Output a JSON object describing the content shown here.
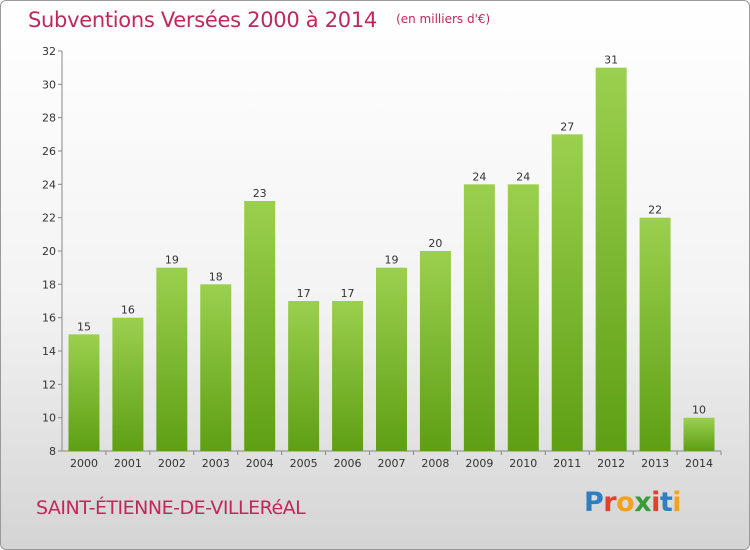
{
  "header": {
    "title": "Subventions Versées 2000 à 2014",
    "subtitle": "(en milliers d'€)"
  },
  "footer": {
    "commune": "SAINT-ÉTIENNE-DE-VILLERéAL",
    "logo_letters": [
      "P",
      "r",
      "o",
      "x",
      "i",
      "t",
      "i"
    ]
  },
  "colors": {
    "title": "#c0285a",
    "bar_top": "#9bd04e",
    "bar_bottom": "#5e9f14",
    "logo": [
      "#2d7fc1",
      "#e2412b",
      "#f2a21d",
      "#3a9b3a",
      "#e2412b",
      "#2d7fc1",
      "#f2a21d"
    ]
  },
  "chart_data": {
    "type": "bar",
    "title": "Subventions Versées 2000 à 2014",
    "subtitle": "(en milliers d'€)",
    "categories": [
      "2000",
      "2001",
      "2002",
      "2003",
      "2004",
      "2005",
      "2006",
      "2007",
      "2008",
      "2009",
      "2010",
      "2011",
      "2012",
      "2013",
      "2014"
    ],
    "values": [
      15,
      16,
      19,
      18,
      23,
      17,
      17,
      19,
      20,
      24,
      24,
      27,
      31,
      22,
      10
    ],
    "ylim": [
      8,
      32
    ],
    "yticks": [
      8,
      10,
      12,
      14,
      16,
      18,
      20,
      22,
      24,
      26,
      28,
      30,
      32
    ],
    "grid": false,
    "data_labels": true
  }
}
